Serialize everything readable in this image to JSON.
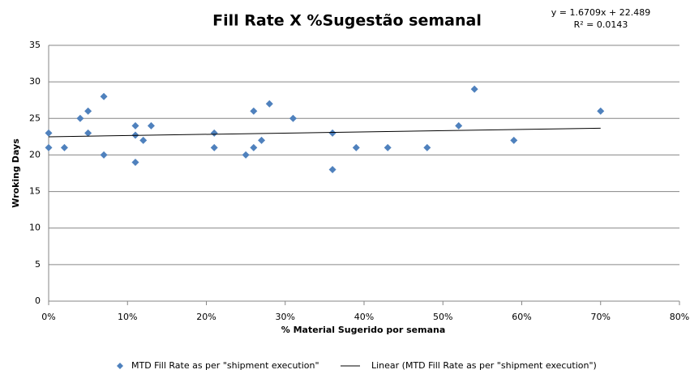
{
  "chart_data": {
    "type": "scatter",
    "title": "Fill Rate X %Sugestão semanal",
    "annotations": [
      "y = 1.6709x + 22.489",
      "R² = 0.0143"
    ],
    "x_label": "% Material Sugerido por semana",
    "y_label": "Wroking Days",
    "xlim": [
      0,
      80
    ],
    "xticks": [
      {
        "value": 0,
        "label": "0%"
      },
      {
        "value": 10,
        "label": "10%"
      },
      {
        "value": 20,
        "label": "20%"
      },
      {
        "value": 30,
        "label": "30%"
      },
      {
        "value": 40,
        "label": "40%"
      },
      {
        "value": 50,
        "label": "50%"
      },
      {
        "value": 60,
        "label": "60%"
      },
      {
        "value": 70,
        "label": "70%"
      },
      {
        "value": 80,
        "label": "80%"
      }
    ],
    "ylim": [
      0,
      35
    ],
    "yticks": [
      0,
      5,
      10,
      15,
      20,
      25,
      30,
      35
    ],
    "grid": true,
    "legend": "bottom",
    "series": [
      {
        "name": "MTD Fill Rate as per \"shipment execution\"",
        "color": "#4f81bd",
        "mode": "markers",
        "x": [
          0,
          0,
          2,
          4,
          5,
          5,
          7,
          7,
          11,
          11,
          11,
          12,
          13,
          21,
          21,
          25,
          26,
          26,
          27,
          28,
          31,
          36,
          36,
          39,
          43,
          48,
          52,
          54,
          59,
          70
        ],
        "values": [
          21,
          23,
          21,
          25,
          26,
          23,
          28,
          20,
          24,
          22.7,
          19,
          22,
          24,
          23,
          21,
          20,
          26,
          21,
          22,
          27,
          25,
          23,
          18,
          21,
          21,
          21,
          24,
          29,
          22,
          26
        ]
      },
      {
        "name": "Linear (MTD Fill Rate as per \"shipment execution\")",
        "color": "#000000",
        "mode": "line",
        "x": [
          0,
          70
        ],
        "values": [
          22.489,
          23.659
        ]
      }
    ]
  }
}
